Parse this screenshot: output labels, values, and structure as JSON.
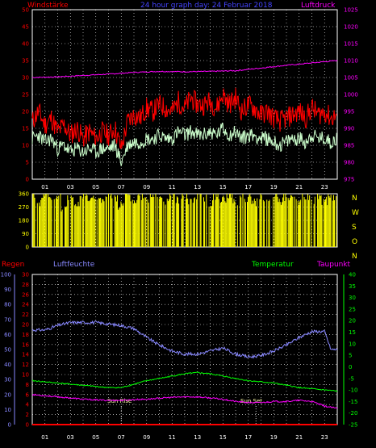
{
  "header": {
    "wind_label": "Windstärke",
    "title": "24 hour graph day: 24 Februar 2018",
    "pressure_label": "Luftdruck"
  },
  "lower_header": {
    "rain_label": "Regen",
    "humidity_label": "Luftfeuchte",
    "temperature_label": "Temperatur",
    "dewpoint_label": "Taupunkt"
  },
  "x_ticks": [
    "01",
    "03",
    "05",
    "07",
    "09",
    "11",
    "13",
    "15",
    "17",
    "19",
    "21",
    "23"
  ],
  "lower_x_ticks": [
    "01",
    "03",
    "05",
    "07",
    "09",
    "11",
    "13",
    "15",
    "17",
    "19",
    "21",
    "23"
  ],
  "sun": {
    "rise_label": "Sun Rise",
    "set_label": "Sun Set",
    "rise_hour": 7.0,
    "set_hour": 17.6
  },
  "direction_letters": [
    "N",
    "W",
    "S",
    "O",
    "N"
  ],
  "colors": {
    "wind_gust": "#ff0000",
    "wind_avg": "#ccffcc",
    "pressure": "#ff00ff",
    "direction": "#ffff00",
    "humidity": "#8888ff",
    "temperature": "#00ff00",
    "dewpoint": "#ff00ff",
    "rain": "#ff0000",
    "grid": "#ffffff",
    "frame": "#ffffff"
  },
  "chart_data": [
    {
      "type": "line",
      "name": "wind-pressure",
      "x_range": [
        0,
        24
      ],
      "left_axis": {
        "ticks": [
          0,
          5,
          10,
          15,
          20,
          25,
          30,
          35,
          40,
          45,
          50
        ],
        "ylim": [
          0,
          50
        ]
      },
      "right_axis": {
        "ticks": [
          975,
          980,
          985,
          990,
          995,
          1000,
          1005,
          1010,
          1015,
          1020,
          1025
        ],
        "ylim": [
          975,
          1025
        ]
      },
      "series": [
        {
          "axis": "left",
          "role": "gust",
          "x": [
            0,
            0.5,
            1,
            1.5,
            2,
            2.5,
            3,
            3.5,
            4,
            4.5,
            5,
            5.5,
            6,
            6.5,
            7,
            7.5,
            8,
            8.5,
            9,
            9.5,
            10,
            10.5,
            11,
            11.5,
            12,
            12.5,
            13,
            13.5,
            14,
            14.5,
            15,
            15.5,
            16,
            16.5,
            17,
            17.5,
            18,
            18.5,
            19,
            19.5,
            20,
            20.5,
            21,
            21.5,
            22,
            22.5,
            23,
            23.5,
            24
          ],
          "y": [
            17,
            20,
            16,
            18,
            14,
            16,
            13,
            15,
            12,
            14,
            12,
            14,
            13,
            15,
            9,
            17,
            19,
            18,
            21,
            20,
            22,
            21,
            20,
            23,
            21,
            24,
            22,
            22,
            23,
            21,
            25,
            22,
            24,
            20,
            22,
            21,
            19,
            20,
            18,
            17,
            18,
            19,
            20,
            18,
            21,
            19,
            20,
            18,
            19
          ]
        },
        {
          "axis": "left",
          "role": "average",
          "x": [
            0,
            0.5,
            1,
            1.5,
            2,
            2.5,
            3,
            3.5,
            4,
            4.5,
            5,
            5.5,
            6,
            6.5,
            7,
            7.5,
            8,
            8.5,
            9,
            9.5,
            10,
            10.5,
            11,
            11.5,
            12,
            12.5,
            13,
            13.5,
            14,
            14.5,
            15,
            15.5,
            16,
            16.5,
            17,
            17.5,
            18,
            18.5,
            19,
            19.5,
            20,
            20.5,
            21,
            21.5,
            22,
            22.5,
            23,
            23.5,
            24
          ],
          "y": [
            12,
            13,
            11,
            12,
            9,
            10,
            8,
            9,
            8,
            9,
            8,
            9,
            9,
            10,
            5,
            10,
            11,
            11,
            12,
            12,
            13,
            12,
            12,
            14,
            13,
            14,
            13,
            13,
            14,
            13,
            15,
            13,
            14,
            12,
            13,
            13,
            12,
            12,
            11,
            10,
            11,
            12,
            12,
            11,
            13,
            12,
            12,
            11,
            12
          ]
        },
        {
          "axis": "right",
          "role": "pressure",
          "x": [
            0,
            2,
            4,
            6,
            8,
            10,
            12,
            14,
            16,
            18,
            20,
            22,
            24
          ],
          "y": [
            1005.0,
            1005.2,
            1005.6,
            1006.0,
            1006.5,
            1006.8,
            1006.7,
            1006.8,
            1007.0,
            1007.8,
            1008.6,
            1009.3,
            1010.0
          ]
        }
      ]
    },
    {
      "type": "bar",
      "name": "wind-direction",
      "x_range": [
        0,
        24
      ],
      "y_axis": {
        "ticks": [
          0,
          90,
          180,
          270,
          360
        ],
        "ylim": [
          0,
          360
        ]
      },
      "series": [
        {
          "role": "direction",
          "x": [
            0,
            0.5,
            1,
            1.5,
            2,
            2.5,
            3,
            3.5,
            4,
            4.5,
            5,
            5.5,
            6,
            6.5,
            7,
            7.5,
            8,
            8.5,
            9,
            9.5,
            10,
            10.5,
            11,
            11.5,
            12,
            12.5,
            13,
            13.5,
            14,
            14.5,
            15,
            15.5,
            16,
            16.5,
            17,
            17.5,
            18,
            18.5,
            19,
            19.5,
            20,
            20.5,
            21,
            21.5,
            22,
            22.5,
            23,
            23.5,
            24
          ],
          "y": [
            340,
            300,
            350,
            320,
            340,
            260,
            330,
            300,
            350,
            320,
            340,
            310,
            345,
            330,
            280,
            350,
            300,
            340,
            310,
            350,
            330,
            300,
            345,
            320,
            340,
            310,
            350,
            330,
            300,
            345,
            320,
            350,
            310,
            340,
            330,
            300,
            345,
            320,
            350,
            310,
            340,
            330,
            300,
            345,
            320,
            350,
            310,
            340,
            330
          ]
        }
      ]
    },
    {
      "type": "line",
      "name": "humidity-temperature",
      "x_range": [
        0,
        24
      ],
      "humidity_axis": {
        "ticks": [
          0,
          10,
          20,
          30,
          40,
          50,
          60,
          70,
          80,
          90,
          100
        ],
        "ylim": [
          0,
          100
        ]
      },
      "rain_axis": {
        "ticks": [
          0,
          2,
          4,
          6,
          8,
          10,
          12,
          14,
          16,
          18,
          20,
          22,
          24,
          26,
          28,
          30
        ],
        "ylim": [
          0,
          30
        ]
      },
      "temperature_axis": {
        "ticks": [
          -25,
          -20,
          -15,
          -10,
          -5,
          0,
          5,
          10,
          15,
          20,
          25,
          30,
          35,
          40
        ],
        "ylim": [
          -25,
          40
        ]
      },
      "series": [
        {
          "axis": "humidity",
          "role": "humidity",
          "x": [
            0,
            1,
            2,
            3,
            4,
            5,
            6,
            7,
            8,
            9,
            10,
            11,
            12,
            13,
            14,
            15,
            16,
            17,
            18,
            19,
            20,
            21,
            22,
            23,
            23.5,
            24
          ],
          "y": [
            63,
            63,
            66,
            68,
            68,
            68,
            67,
            66,
            64,
            58,
            53,
            49,
            47,
            47,
            49,
            51,
            47,
            45,
            46,
            49,
            53,
            58,
            62,
            62,
            50,
            50
          ]
        },
        {
          "axis": "temperature",
          "role": "temperature",
          "x": [
            0,
            1,
            2,
            3,
            4,
            5,
            6,
            7,
            8,
            9,
            10,
            11,
            12,
            13,
            14,
            15,
            16,
            17,
            18,
            19,
            20,
            21,
            22,
            23,
            24
          ],
          "y": [
            -6,
            -6.5,
            -7,
            -7.5,
            -8,
            -8.5,
            -9,
            -9,
            -7.5,
            -6,
            -5,
            -4,
            -3,
            -2.5,
            -3,
            -4,
            -5,
            -6,
            -6.5,
            -7,
            -8,
            -9,
            -9.5,
            -10,
            -10.5
          ]
        },
        {
          "axis": "temperature",
          "role": "dewpoint",
          "x": [
            0,
            1,
            2,
            3,
            4,
            5,
            6,
            7,
            8,
            9,
            10,
            11,
            12,
            13,
            14,
            15,
            16,
            17,
            18,
            19,
            20,
            21,
            22,
            23,
            24
          ],
          "y": [
            -12,
            -12.5,
            -13,
            -13.5,
            -14,
            -14.3,
            -14.5,
            -14.5,
            -14.2,
            -14,
            -13.6,
            -13.2,
            -13,
            -13,
            -13.5,
            -14,
            -15,
            -15.5,
            -15.5,
            -15,
            -15,
            -14.5,
            -15,
            -17,
            -18
          ]
        },
        {
          "axis": "rain",
          "role": "rain",
          "x": [
            0,
            24
          ],
          "y": [
            0,
            0
          ]
        }
      ]
    }
  ]
}
